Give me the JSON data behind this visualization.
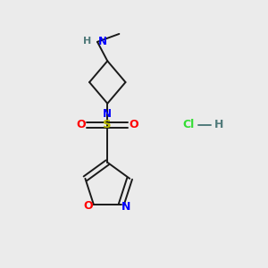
{
  "bg_color": "#ebebeb",
  "bond_color": "#1a1a1a",
  "N_color": "#0000ff",
  "O_color": "#ff0000",
  "S_color": "#bbbb00",
  "H_color": "#507a7a",
  "Cl_color": "#33dd33",
  "figsize": [
    3.0,
    3.0
  ],
  "dpi": 100,
  "xlim": [
    0,
    10
  ],
  "ylim": [
    0,
    10
  ]
}
